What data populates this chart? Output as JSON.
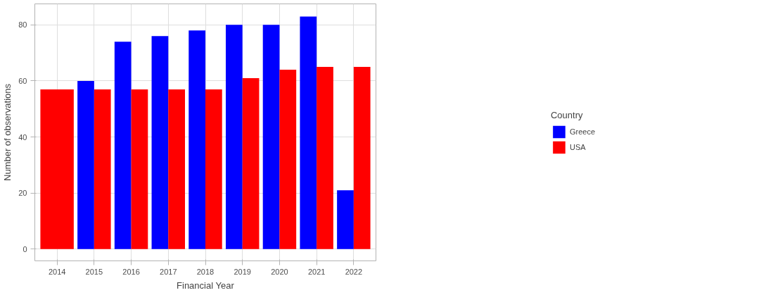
{
  "chart_data": {
    "type": "bar",
    "xlabel": "Financial Year",
    "ylabel": "Number of observations",
    "legend_title": "Country",
    "categories": [
      "2014",
      "2015",
      "2016",
      "2017",
      "2018",
      "2019",
      "2020",
      "2021",
      "2022"
    ],
    "series": [
      {
        "name": "Greece",
        "color": "#0000ff",
        "values": [
          null,
          60,
          74,
          76,
          78,
          80,
          80,
          83,
          21
        ]
      },
      {
        "name": "USA",
        "color": "#ff0000",
        "values": [
          57,
          57,
          57,
          57,
          57,
          61,
          64,
          65,
          65
        ]
      }
    ],
    "ylim": [
      -4.2,
      87.5
    ],
    "yticks": [
      0,
      20,
      40,
      60,
      80
    ],
    "grid": true,
    "legend": "right"
  }
}
